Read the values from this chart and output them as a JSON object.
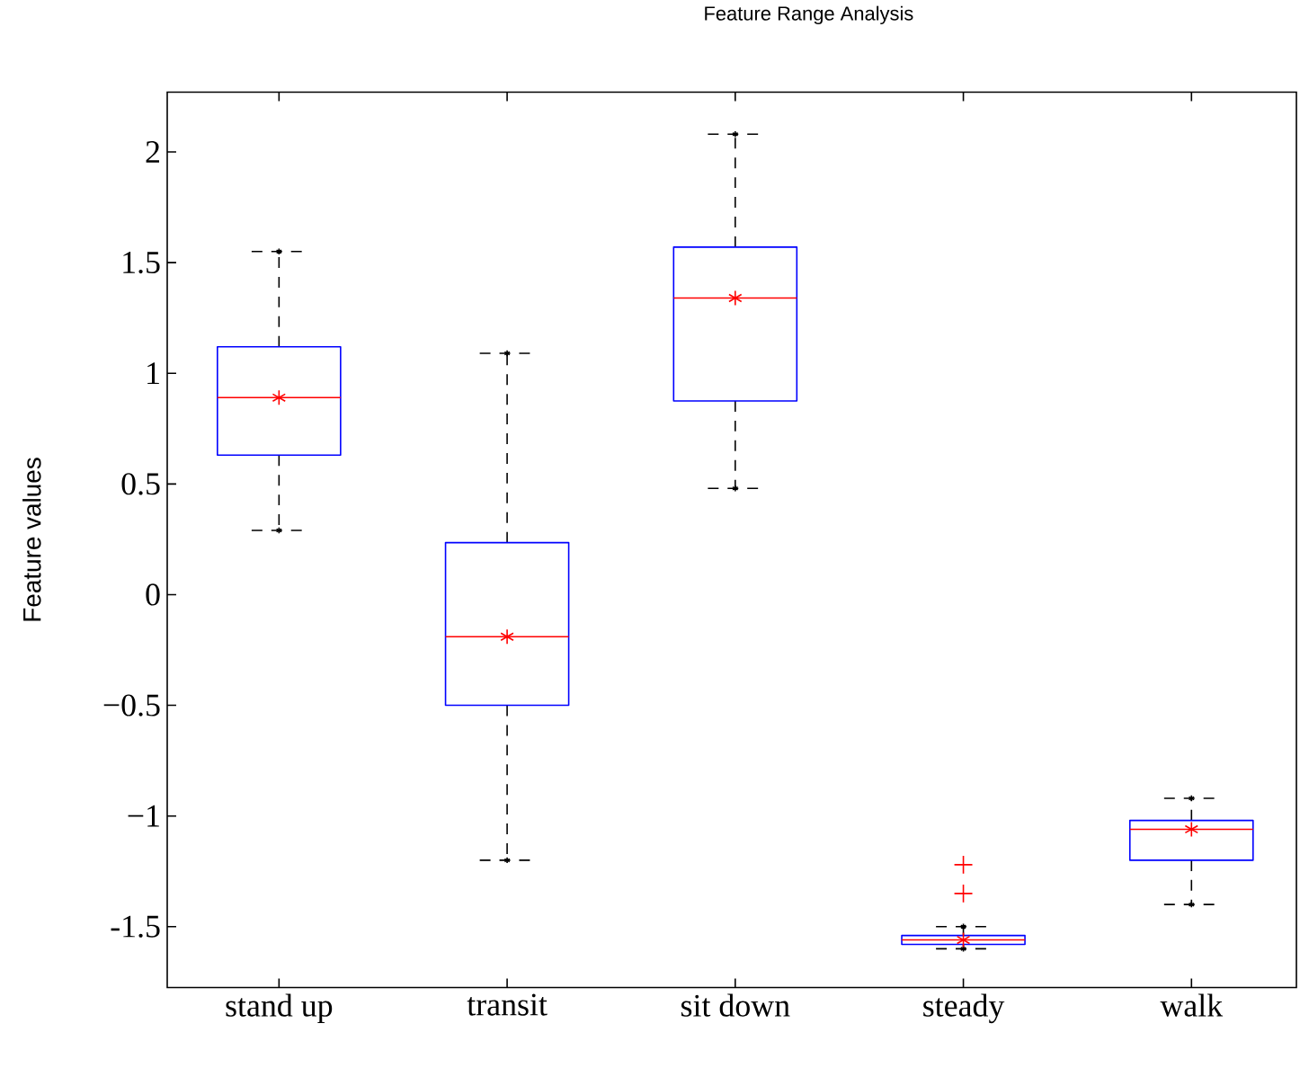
{
  "chart_data": {
    "type": "box",
    "title": "Feature Range Analysis",
    "ylabel": "Feature values",
    "categories": [
      "stand up",
      "transit",
      "sit down",
      "steady",
      "walk"
    ],
    "ylim": [
      -1.775,
      2.27
    ],
    "yticks": [
      {
        "value": -1.5,
        "label": "-1.5"
      },
      {
        "value": -1,
        "label": "−1"
      },
      {
        "value": -0.5,
        "label": "−0.5"
      },
      0,
      0.5,
      1,
      1.5,
      2
    ],
    "boxes": [
      {
        "low": 0.29,
        "q1": 0.63,
        "median": 0.89,
        "q3": 1.12,
        "high": 1.55,
        "mean": 0.89
      },
      {
        "low": -1.2,
        "q1": -0.5,
        "median": -0.19,
        "q3": 0.235,
        "high": 1.09,
        "mean": -0.19
      },
      {
        "low": 0.48,
        "q1": 0.875,
        "median": 1.34,
        "q3": 1.57,
        "high": 2.08,
        "mean": 1.34
      },
      {
        "low": -1.6,
        "q1": -1.58,
        "median": -1.56,
        "q3": -1.54,
        "high": -1.5,
        "mean": -1.56,
        "outliers": [
          -1.22,
          -1.35
        ]
      },
      {
        "low": -1.4,
        "q1": -1.2,
        "median": -1.06,
        "q3": -1.02,
        "high": -0.92,
        "mean": -1.06
      }
    ]
  }
}
